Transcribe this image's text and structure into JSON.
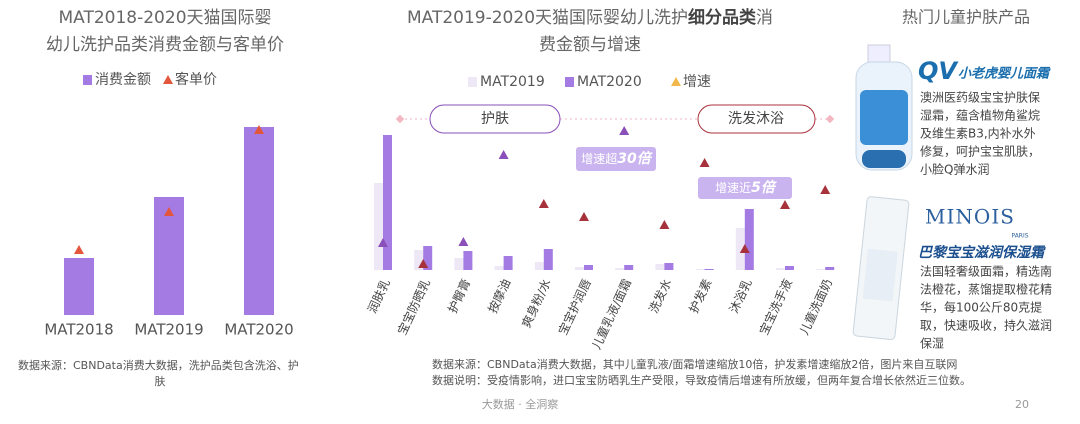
{
  "chart_data": [
    {
      "type": "bar",
      "title": [
        "MAT2018-2020天猫国际婴",
        "幼儿洗护品类消费金额与客单价"
      ],
      "categories": [
        "MAT2018",
        "MAT2019",
        "MAT2020"
      ],
      "series": [
        {
          "name": "消费金额",
          "color": "#a47be3",
          "style": "bar",
          "values": [
            57,
            118,
            188
          ]
        },
        {
          "name": "客单价",
          "color": "#e2563c",
          "style": "triangle",
          "values": [
            65,
            103,
            185
          ]
        }
      ],
      "ylim": [
        0,
        200
      ],
      "note": [
        "数据来源：CBNData消费大数据，洗护品类包含洗浴、护",
        "肤"
      ]
    },
    {
      "type": "bar",
      "title": {
        "pre": "MAT2019-2020天猫国际婴幼儿洗护",
        "bold": "细分品类",
        "post": "消",
        "line2": "费金额与增速"
      },
      "categories": [
        "润肤乳",
        "宝宝防晒乳",
        "护臀膏",
        "按摩油",
        "爽身粉/水",
        "宝宝护润唇",
        "儿童乳液/面霜",
        "洗发水",
        "护发素",
        "沐浴乳",
        "宝宝洗手液",
        "儿童洗面奶"
      ],
      "series": [
        {
          "name": "MAT2019",
          "color": "#ede7f6",
          "style": "bar",
          "values": [
            87,
            20,
            12,
            4,
            8,
            3,
            2,
            6,
            1,
            42,
            2,
            1
          ]
        },
        {
          "name": "MAT2020",
          "color": "#a47be3",
          "style": "bar",
          "values": [
            135,
            24,
            19,
            14,
            21,
            5,
            5,
            7,
            1,
            61,
            4,
            3
          ]
        },
        {
          "name": "增速",
          "color": "#f2b84b",
          "style": "triangle",
          "point_colors": [
            "#8a4fb8",
            "#a8323c",
            "#8a4fb8",
            "#8a4fb8",
            "#a8323c",
            "#a8323c",
            "#8a4fb8",
            "#a8323c",
            "#a8323c",
            "#a8323c",
            "#a8323c",
            "#a8323c"
          ],
          "values": [
            27,
            6,
            28,
            115,
            66,
            53,
            139,
            45,
            107,
            21,
            65,
            80
          ]
        }
      ],
      "ylim": [
        0,
        200
      ],
      "groups": [
        "护肤",
        "洗发沐浴"
      ],
      "callouts": [
        {
          "text": "增速超",
          "emphasis": "30倍"
        },
        {
          "text": "增速近",
          "emphasis": "5倍"
        }
      ],
      "note": [
        "数据来源：CBNData消费大数据，其中儿童乳液/面霜增速缩放10倍，护发素增速缩放2倍，图片来自互联网",
        "数据说明：受疫情影响，进口宝宝防晒乳生产受限，导致疫情后增速有所放缓，但两年复合增长依然近三位数。"
      ]
    }
  ],
  "products": {
    "title": "热门儿童护肤产品",
    "items": [
      {
        "brand": "QV",
        "name": "小老虎婴儿面霜",
        "description": [
          "澳洲医药级宝宝护肤保",
          "湿霜，蕴含植物角鲨烷",
          "及维生素B3,内补水外",
          "修复，呵护宝宝肌肤，",
          "小脸Q弹水润"
        ]
      },
      {
        "brand": "MINOIS",
        "sub": "PARIS",
        "name": "巴黎宝宝滋润保湿霜",
        "description": [
          "法国轻奢级面霜，精选南",
          "法橙花，蒸馏提取橙花精",
          "华，每100公斤80克提",
          "取，快速吸收，持久滋润",
          "保湿"
        ]
      }
    ]
  },
  "footer": {
    "tagline": "大数据 · 全洞察",
    "page": "20"
  }
}
